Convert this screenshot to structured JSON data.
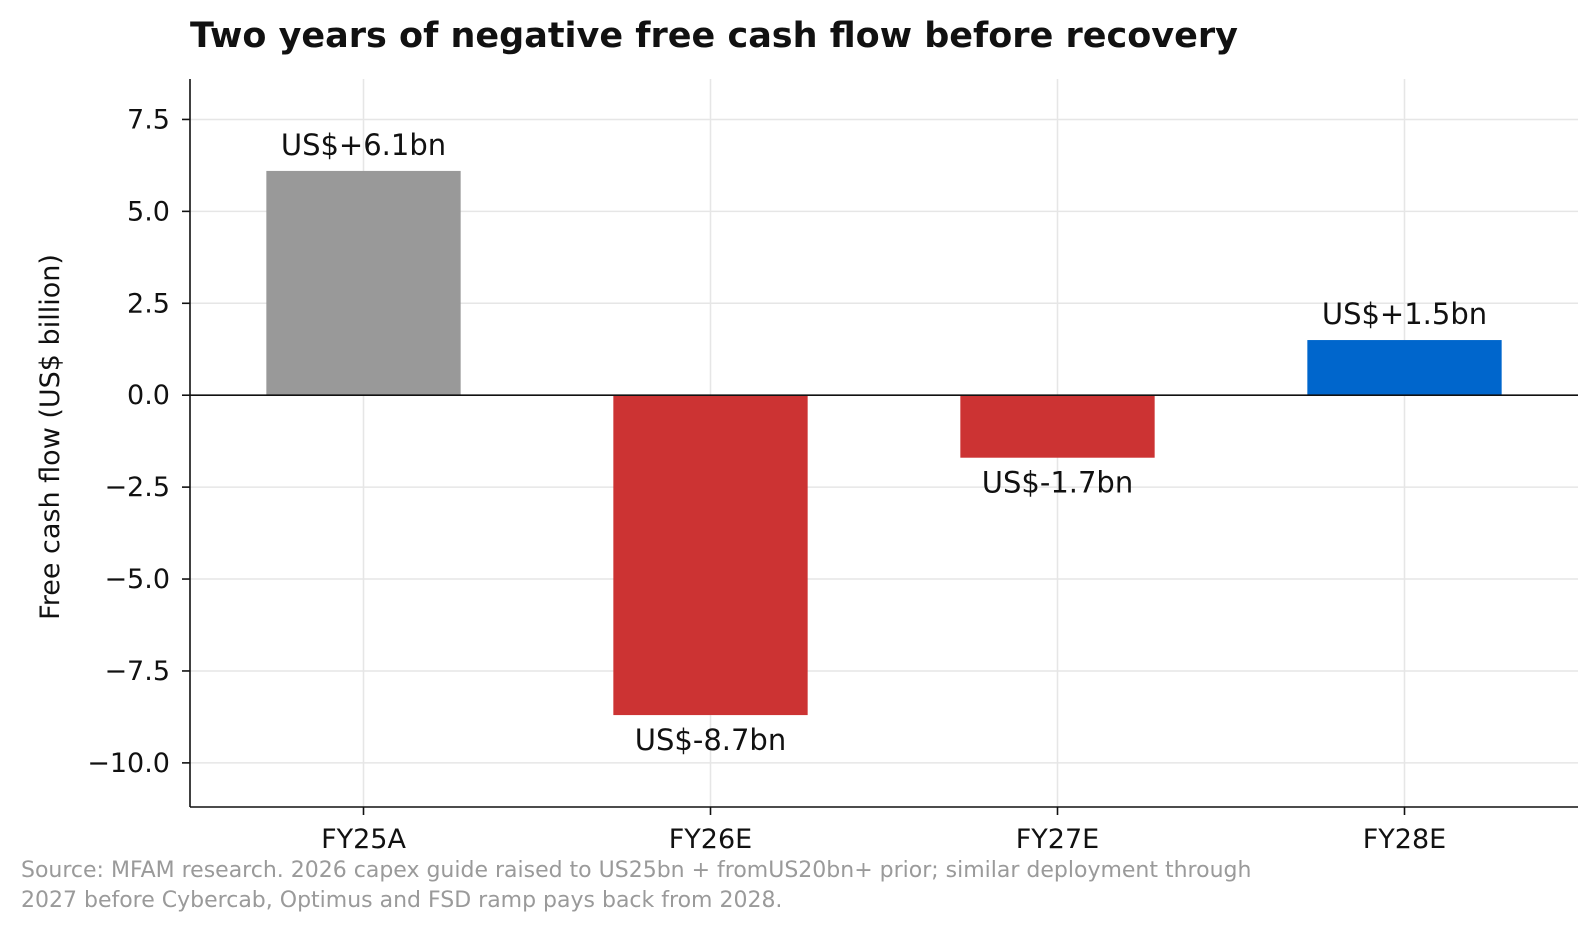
{
  "chart_data": {
    "type": "bar",
    "title": "Two years of negative free cash flow before recovery",
    "xlabel": "",
    "ylabel": "Free cash flow (US$ billion)",
    "categories": [
      "FY25A",
      "FY26E",
      "FY27E",
      "FY28E"
    ],
    "values": [
      6.1,
      -8.7,
      -1.7,
      1.5
    ],
    "data_labels": [
      "US$+6.1bn",
      "US$-8.7bn",
      "US$-1.7bn",
      "US$+1.5bn"
    ],
    "bar_colors": [
      "#999999",
      "#cc3333",
      "#cc3333",
      "#0066cc"
    ],
    "ylim": [
      -11.2,
      8.6
    ],
    "yticks": [
      7.5,
      5.0,
      2.5,
      0.0,
      -2.5,
      -5.0,
      -7.5,
      -10.0
    ],
    "ytick_labels": [
      "7.5",
      "5.0",
      "2.5",
      "0.0",
      "−2.5",
      "−5.0",
      "−7.5",
      "−10.0"
    ],
    "grid": true,
    "zero_line": true
  },
  "source_note": {
    "line1": "Source: MFAM research. 2026 capex guide raised to US25bn + fromUS20bn+ prior; similar deployment through",
    "line2": "2027 before Cybercab, Optimus and FSD ramp pays back from 2028."
  },
  "colors": {
    "axis": "#111111",
    "grid": "#e6e6e6",
    "note": "#9a9a9a"
  }
}
